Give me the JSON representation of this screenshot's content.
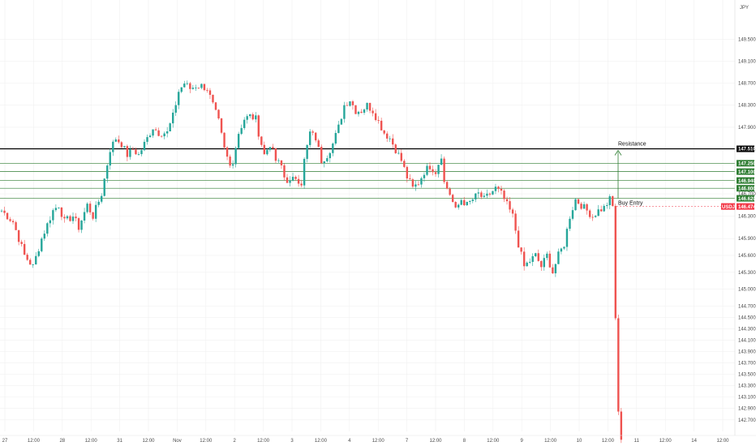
{
  "chart_data": {
    "type": "candlestick",
    "symbol": "USDJPY",
    "currency": "JPY",
    "y_axis_side": "right",
    "y_scale": "log",
    "ylim": [
      142.5,
      150.1
    ],
    "grid": true,
    "y_ticks": [
      "149.500",
      "149.100",
      "148.700",
      "148.300",
      "147.900",
      "147.500",
      "147.250",
      "147.100",
      "146.940",
      "146.800",
      "146.700",
      "146.620",
      "146.474",
      "146.300",
      "145.900",
      "145.600",
      "145.300",
      "145.000",
      "144.700",
      "144.500",
      "144.300",
      "144.100",
      "143.900",
      "143.700",
      "143.500",
      "143.300",
      "143.100",
      "142.900",
      "142.700"
    ],
    "x_ticks": [
      "27",
      "12:00",
      "28",
      "12:00",
      "31",
      "12:00",
      "Nov",
      "12:00",
      "2",
      "12:00",
      "3",
      "12:00",
      "4",
      "12:00",
      "7",
      "12:00",
      "8",
      "12:00",
      "9",
      "12:00",
      "10",
      "12:00",
      "11",
      "12:00",
      "14",
      "12:00"
    ],
    "levels": [
      {
        "price": 147.51,
        "label": "147.510",
        "color": "#000000",
        "kind": "resistance"
      },
      {
        "price": 147.25,
        "label": "147.250",
        "color": "#2e7d32"
      },
      {
        "price": 147.1,
        "label": "147.100",
        "color": "#2e7d32"
      },
      {
        "price": 146.94,
        "label": "146.940",
        "color": "#2e7d32"
      },
      {
        "price": 146.8,
        "label": "146.800",
        "color": "#2e7d32"
      },
      {
        "price": 146.62,
        "label": "146.620",
        "color": "#2e7d32"
      }
    ],
    "annotations": {
      "resistance": "Resistance",
      "buy_entry": "Buy Entry"
    },
    "current_price": {
      "symbol_label": "USDJPY",
      "price": "146.474",
      "value": 146.474
    },
    "colors": {
      "up": "#26a69a",
      "down": "#ef5350",
      "resistance": "#000000",
      "levels": "#2e7d32",
      "current": "#f23645"
    },
    "close_path": [
      [
        0,
        146.4
      ],
      [
        4,
        146.2
      ],
      [
        8,
        145.6
      ],
      [
        11,
        145.4
      ],
      [
        14,
        145.9
      ],
      [
        18,
        146.4
      ],
      [
        20,
        146.5
      ],
      [
        22,
        146.2
      ],
      [
        25,
        146.3
      ],
      [
        27,
        146.1
      ],
      [
        30,
        146.5
      ],
      [
        32,
        146.3
      ],
      [
        35,
        146.7
      ],
      [
        38,
        147.5
      ],
      [
        40,
        147.7
      ],
      [
        42,
        147.6
      ],
      [
        44,
        147.4
      ],
      [
        46,
        147.5
      ],
      [
        48,
        147.4
      ],
      [
        50,
        147.6
      ],
      [
        53,
        147.9
      ],
      [
        55,
        147.8
      ],
      [
        58,
        147.8
      ],
      [
        60,
        148.1
      ],
      [
        62,
        148.55
      ],
      [
        64,
        148.7
      ],
      [
        66,
        148.6
      ],
      [
        68,
        148.65
      ],
      [
        70,
        148.65
      ],
      [
        72,
        148.6
      ],
      [
        74,
        148.3
      ],
      [
        76,
        148.0
      ],
      [
        78,
        147.5
      ],
      [
        80,
        147.2
      ],
      [
        81,
        147.3
      ],
      [
        83,
        147.8
      ],
      [
        85,
        148.05
      ],
      [
        87,
        148.1
      ],
      [
        89,
        148.05
      ],
      [
        90,
        147.8
      ],
      [
        92,
        147.4
      ],
      [
        94,
        147.6
      ],
      [
        96,
        147.3
      ],
      [
        98,
        147.2
      ],
      [
        99,
        147.0
      ],
      [
        101,
        146.9
      ],
      [
        103,
        147.0
      ],
      [
        105,
        146.9
      ],
      [
        106,
        147.3
      ],
      [
        108,
        147.8
      ],
      [
        110,
        147.7
      ],
      [
        112,
        147.3
      ],
      [
        114,
        147.4
      ],
      [
        116,
        147.6
      ],
      [
        118,
        147.9
      ],
      [
        120,
        148.3
      ],
      [
        122,
        148.4
      ],
      [
        124,
        148.2
      ],
      [
        126,
        148.2
      ],
      [
        128,
        148.3
      ],
      [
        130,
        148.2
      ],
      [
        132,
        148.0
      ],
      [
        134,
        147.8
      ],
      [
        136,
        147.7
      ],
      [
        138,
        147.5
      ],
      [
        140,
        147.3
      ],
      [
        142,
        147.0
      ],
      [
        144,
        146.8
      ],
      [
        146,
        146.9
      ],
      [
        148,
        147.1
      ],
      [
        150,
        147.2
      ],
      [
        152,
        147.1
      ],
      [
        154,
        147.4
      ],
      [
        155,
        146.9
      ],
      [
        157,
        146.7
      ],
      [
        159,
        146.4
      ],
      [
        161,
        146.6
      ],
      [
        163,
        146.5
      ],
      [
        165,
        146.6
      ],
      [
        167,
        146.7
      ],
      [
        169,
        146.6
      ],
      [
        171,
        146.7
      ],
      [
        173,
        146.8
      ],
      [
        175,
        146.7
      ],
      [
        177,
        146.5
      ],
      [
        179,
        146.3
      ],
      [
        181,
        145.8
      ],
      [
        183,
        145.4
      ],
      [
        185,
        145.5
      ],
      [
        187,
        145.6
      ],
      [
        189,
        145.4
      ],
      [
        191,
        145.6
      ],
      [
        193,
        145.3
      ],
      [
        195,
        145.6
      ],
      [
        197,
        145.8
      ],
      [
        199,
        146.3
      ],
      [
        201,
        146.6
      ],
      [
        203,
        146.5
      ],
      [
        205,
        146.4
      ],
      [
        207,
        146.3
      ],
      [
        209,
        146.4
      ],
      [
        211,
        146.45
      ],
      [
        213,
        146.6
      ],
      [
        214,
        146.47
      ],
      [
        215,
        144.5
      ],
      [
        216,
        142.8
      ],
      [
        217,
        142.4
      ]
    ]
  },
  "dashes": "—"
}
